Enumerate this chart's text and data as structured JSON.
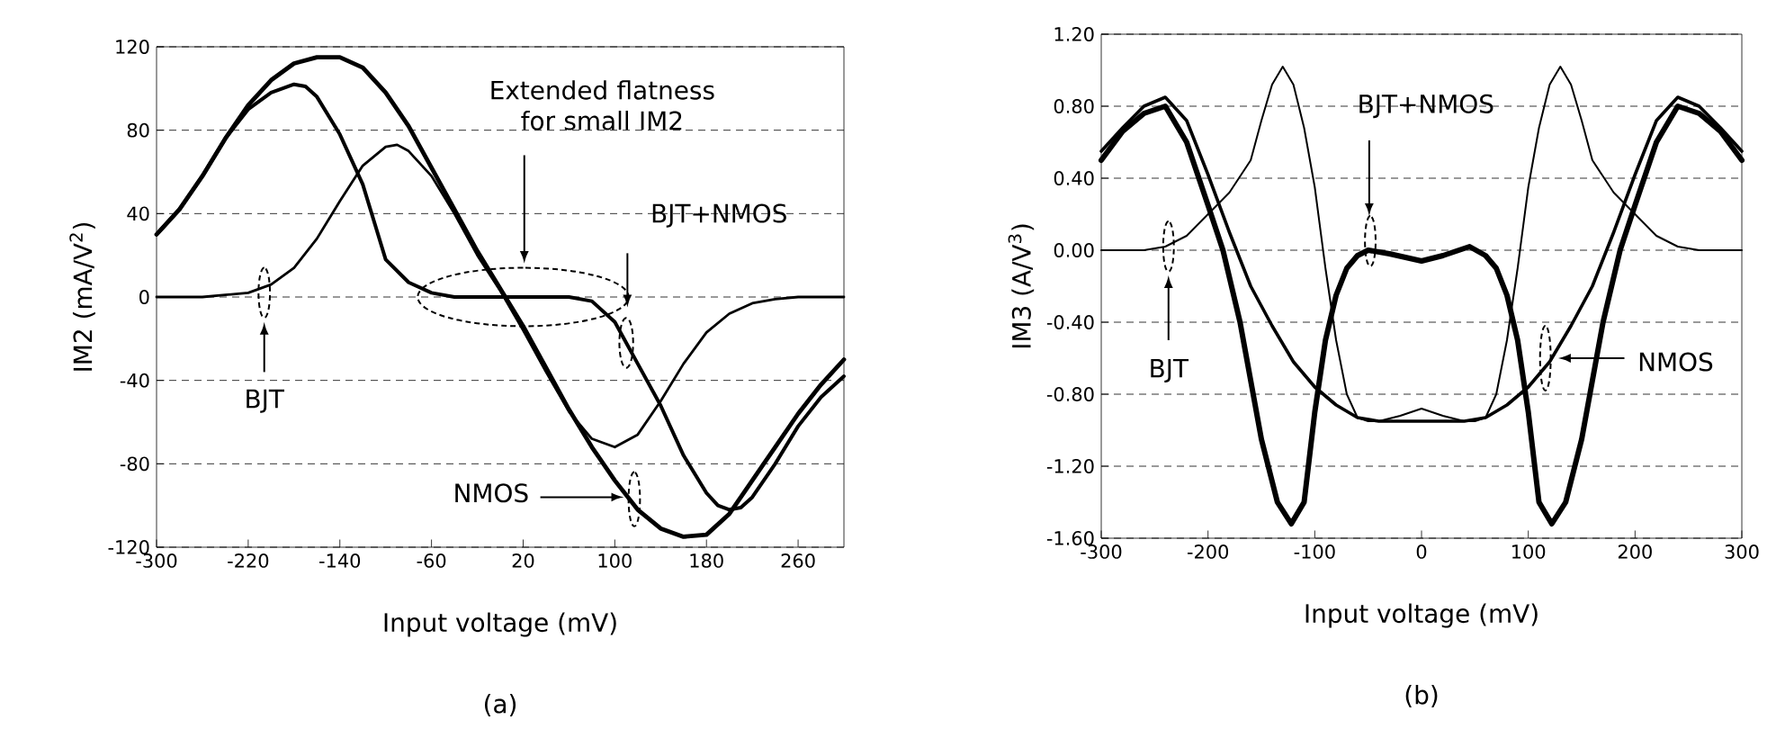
{
  "chart_data": [
    {
      "type": "line",
      "xlabel": "Input voltage (mV)",
      "ylabel": "IM2 (mA/V$^{2}$)",
      "xlim": [
        -300,
        300
      ],
      "xticks": [
        -300,
        -220,
        -140,
        -60,
        20,
        100,
        180,
        260
      ],
      "ylim": [
        -120,
        120
      ],
      "yticks": [
        -120,
        -80,
        -40,
        0,
        40,
        80,
        120
      ],
      "grid": "y",
      "series": [
        {
          "color": "#000000",
          "x": [
            -300,
            -260,
            -240,
            -220,
            -200,
            -180,
            -160,
            -140,
            -120,
            -100,
            -90,
            -80,
            -60,
            -40,
            -20,
            0,
            20,
            40,
            60,
            80,
            100,
            120,
            140,
            160,
            180,
            200,
            220,
            240,
            260,
            300
          ],
          "values": [
            0,
            0,
            1,
            2,
            6,
            14,
            28,
            46,
            63,
            72,
            73,
            70,
            58,
            40,
            20,
            3,
            -16,
            -36,
            -55,
            -68,
            -72,
            -66,
            -50,
            -32,
            -17,
            -8,
            -3,
            -1,
            0,
            0
          ]
        },
        {
          "color": "#000000",
          "x": [
            -300,
            -280,
            -260,
            -240,
            -220,
            -200,
            -180,
            -160,
            -140,
            -120,
            -100,
            -80,
            -60,
            -40,
            -20,
            0,
            20,
            40,
            60,
            80,
            100,
            120,
            140,
            160,
            180,
            200,
            220,
            240,
            260,
            280,
            300
          ],
          "values": [
            30,
            42,
            58,
            76,
            92,
            104,
            112,
            115,
            115,
            110,
            98,
            82,
            62,
            42,
            22,
            4,
            -14,
            -34,
            -54,
            -72,
            -88,
            -102,
            -111,
            -115,
            -114,
            -104,
            -88,
            -72,
            -56,
            -42,
            -30
          ]
        },
        {
          "color": "#000000",
          "x": [
            -300,
            -280,
            -260,
            -240,
            -220,
            -200,
            -180,
            -170,
            -160,
            -140,
            -120,
            -100,
            -80,
            -60,
            -40,
            -20,
            0,
            20,
            40,
            60,
            80,
            100,
            110,
            120,
            140,
            160,
            180,
            190,
            200,
            210,
            220,
            240,
            260,
            280,
            300
          ],
          "values": [
            30,
            42,
            58,
            76,
            90,
            98,
            102,
            101,
            96,
            78,
            54,
            18,
            7,
            2,
            0,
            0,
            0,
            0,
            0,
            0,
            -2,
            -12,
            -22,
            -32,
            -52,
            -76,
            -94,
            -100,
            -102,
            -101,
            -96,
            -80,
            -62,
            -48,
            -38
          ]
        }
      ],
      "annotations": [
        "Extended flatness for small IM2",
        "BJT+NMOS",
        "BJT",
        "NMOS",
        "(a)"
      ]
    },
    {
      "type": "line",
      "xlabel": "Input voltage (mV)",
      "ylabel": "IM3 (A/V$^{3}$)",
      "xlim": [
        -300,
        300
      ],
      "xticks": [
        -300,
        -200,
        -100,
        0,
        100,
        200,
        300
      ],
      "ylim": [
        -1.6,
        1.2
      ],
      "yticks": [
        {
          "value": -1.6,
          "label": "-1.60"
        },
        {
          "value": -1.2,
          "label": "-1.20"
        },
        {
          "value": -0.8,
          "label": "-0.80"
        },
        {
          "value": -0.4,
          "label": "-0.40"
        },
        {
          "value": 0,
          "label": "0.00"
        },
        {
          "value": 0.4,
          "label": "0.40"
        },
        {
          "value": 0.8,
          "label": "0.80"
        },
        {
          "value": 1.2,
          "label": "1.20"
        }
      ],
      "grid": "y",
      "series": [
        {
          "color": "#000000",
          "x": [
            -300,
            -260,
            -240,
            -220,
            -200,
            -180,
            -160,
            -150,
            -140,
            -130,
            -120,
            -110,
            -100,
            -90,
            -80,
            -70,
            -60,
            -50,
            -40,
            -20,
            0,
            20,
            40,
            50,
            60,
            70,
            80,
            90,
            100,
            110,
            120,
            130,
            140,
            150,
            160,
            180,
            200,
            220,
            240,
            260,
            300
          ],
          "values": [
            0,
            0,
            0.02,
            0.08,
            0.2,
            0.32,
            0.5,
            0.72,
            0.92,
            1.02,
            0.92,
            0.68,
            0.35,
            -0.1,
            -0.5,
            -0.8,
            -0.93,
            -0.95,
            -0.95,
            -0.92,
            -0.88,
            -0.92,
            -0.95,
            -0.95,
            -0.93,
            -0.8,
            -0.5,
            -0.1,
            0.35,
            0.68,
            0.92,
            1.02,
            0.92,
            0.72,
            0.5,
            0.32,
            0.2,
            0.08,
            0.02,
            0,
            0
          ]
        },
        {
          "color": "#000000",
          "x": [
            -300,
            -280,
            -260,
            -240,
            -220,
            -200,
            -180,
            -160,
            -140,
            -120,
            -100,
            -80,
            -60,
            -40,
            0,
            40,
            60,
            80,
            100,
            120,
            140,
            160,
            180,
            200,
            220,
            240,
            260,
            280,
            300
          ],
          "values": [
            0.55,
            0.68,
            0.8,
            0.85,
            0.72,
            0.42,
            0.1,
            -0.2,
            -0.42,
            -0.62,
            -0.76,
            -0.86,
            -0.93,
            -0.95,
            -0.95,
            -0.95,
            -0.93,
            -0.86,
            -0.76,
            -0.62,
            -0.42,
            -0.2,
            0.1,
            0.42,
            0.72,
            0.85,
            0.8,
            0.68,
            0.55
          ]
        },
        {
          "color": "#000000",
          "x": [
            -300,
            -280,
            -260,
            -240,
            -220,
            -200,
            -186,
            -170,
            -150,
            -135,
            -122,
            -110,
            -100,
            -90,
            -80,
            -70,
            -60,
            -50,
            -30,
            0,
            20,
            45,
            60,
            70,
            80,
            90,
            100,
            110,
            122,
            135,
            150,
            170,
            186,
            200,
            220,
            240,
            260,
            280,
            300
          ],
          "values": [
            0.5,
            0.66,
            0.76,
            0.8,
            0.6,
            0.25,
            0,
            -0.4,
            -1.05,
            -1.4,
            -1.52,
            -1.4,
            -0.9,
            -0.5,
            -0.25,
            -0.1,
            -0.03,
            0,
            -0.02,
            -0.06,
            -0.03,
            0.02,
            -0.03,
            -0.1,
            -0.25,
            -0.5,
            -0.9,
            -1.4,
            -1.52,
            -1.4,
            -1.05,
            -0.4,
            0,
            0.25,
            0.6,
            0.8,
            0.76,
            0.66,
            0.5
          ]
        }
      ],
      "annotations": [
        "BJT+NMOS",
        "BJT",
        "NMOS",
        "(b)"
      ]
    }
  ]
}
